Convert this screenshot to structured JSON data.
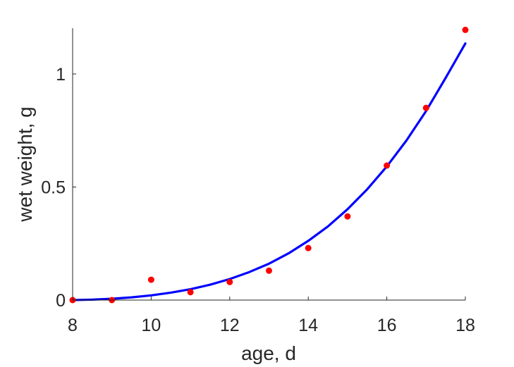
{
  "chart_data": {
    "type": "scatter",
    "title": "",
    "xlabel": "age, d",
    "ylabel": "wet weight, g",
    "xlim": [
      8,
      18
    ],
    "ylim": [
      0,
      1.2
    ],
    "grid": false,
    "xticks": [
      8,
      10,
      12,
      14,
      16,
      18
    ],
    "xtick_labels": [
      "8",
      "10",
      "12",
      "14",
      "16",
      "18"
    ],
    "yticks": [
      0,
      0.5,
      1
    ],
    "ytick_labels": [
      "0",
      "0.5",
      "1"
    ],
    "series": [
      {
        "kind": "scatter",
        "color": "#ff0000",
        "x": [
          8,
          9,
          10,
          11,
          12,
          13,
          14,
          15,
          16,
          17,
          18
        ],
        "y": [
          0.0,
          0.0,
          0.09,
          0.035,
          0.08,
          0.13,
          0.23,
          0.37,
          0.595,
          0.85,
          1.195
        ]
      },
      {
        "kind": "line",
        "color": "#0000ff",
        "x": [
          8,
          8.5,
          9,
          9.5,
          10,
          10.5,
          11,
          11.5,
          12,
          12.5,
          13,
          13.5,
          14,
          14.5,
          15,
          15.5,
          16,
          16.5,
          17,
          17.5,
          18
        ],
        "y": [
          0.0,
          0.002,
          0.006,
          0.012,
          0.021,
          0.033,
          0.048,
          0.068,
          0.093,
          0.124,
          0.161,
          0.207,
          0.262,
          0.326,
          0.402,
          0.49,
          0.591,
          0.706,
          0.836,
          0.983,
          1.135
        ]
      }
    ]
  }
}
